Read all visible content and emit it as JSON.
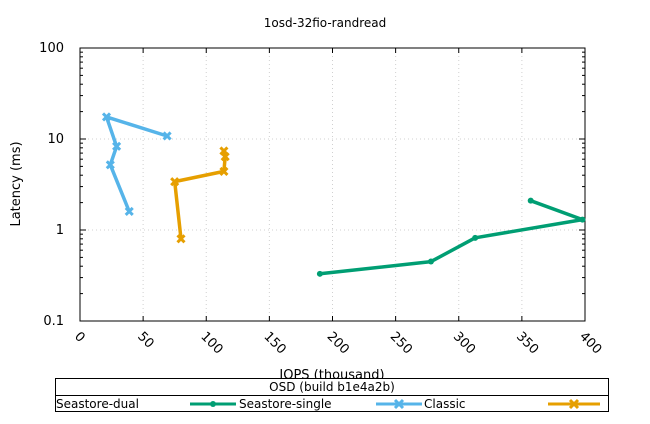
{
  "chart_data": {
    "type": "line",
    "title": "1osd-32fio-randread",
    "xlabel": "IOPS (thousand)",
    "ylabel": "Latency (ms)",
    "xlim": [
      0,
      400
    ],
    "ylim": [
      0.1,
      100
    ],
    "yscale": "log",
    "grid": true,
    "x_ticks": [
      "0",
      "50",
      "100",
      "150",
      "200",
      "250",
      "300",
      "350",
      "400"
    ],
    "y_ticks": [
      "0.1",
      "1",
      "10",
      "100"
    ],
    "legend": {
      "title": "OSD (build b1e4a2b)",
      "placement": "bottom",
      "labels": [
        "Seastore-dual",
        "Seastore-single",
        "Classic"
      ]
    },
    "series": [
      {
        "name": "Seastore-single",
        "color": "#009e73",
        "marker": "circle",
        "points": [
          [
            190,
            0.33
          ],
          [
            278,
            0.45
          ],
          [
            313,
            0.82
          ],
          [
            398,
            1.3
          ],
          [
            357,
            2.1
          ]
        ]
      },
      {
        "name": "Classic",
        "color": "#56b4e9",
        "marker": "x",
        "points": [
          [
            39,
            1.6
          ],
          [
            24,
            5.2
          ],
          [
            29,
            8.3
          ],
          [
            21,
            17.5
          ],
          [
            69,
            10.8
          ]
        ]
      },
      {
        "name": "",
        "color": "#e69f00",
        "marker": "x",
        "points": [
          [
            80,
            0.8
          ],
          [
            75,
            3.4
          ],
          [
            114,
            4.4
          ],
          [
            115,
            6.4
          ],
          [
            114,
            7.4
          ]
        ]
      }
    ]
  }
}
